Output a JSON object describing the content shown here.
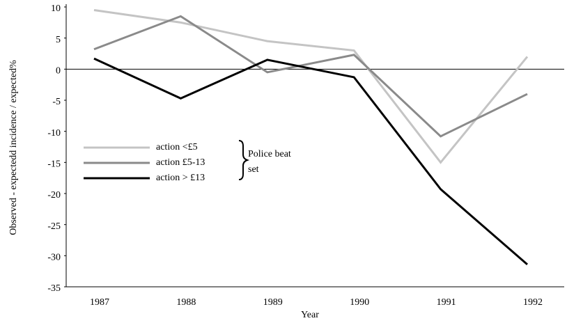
{
  "chart_data": {
    "type": "line",
    "x_label": "Year",
    "y_label": "Observed - expectedd incidence / expected%",
    "categories": [
      "1987",
      "1988",
      "1989",
      "1990",
      "1991",
      "1992"
    ],
    "series": [
      {
        "name": "action <£5",
        "color": "#c4c4c4",
        "values": [
          9.5,
          7.5,
          4.5,
          3,
          -15,
          2
        ]
      },
      {
        "name": "action £5-13",
        "color": "#8a8a8a",
        "values": [
          3.2,
          8.5,
          -0.5,
          2.3,
          -10.8,
          -4
        ]
      },
      {
        "name": "action > £13",
        "color": "#000000",
        "values": [
          1.7,
          -4.7,
          1.5,
          -1.3,
          -19.3,
          -31.4
        ]
      }
    ],
    "legend_annotation": [
      "Police beat",
      "set"
    ],
    "ylim": [
      -35,
      10
    ],
    "yticks": [
      10,
      5,
      0,
      -5,
      -10,
      -15,
      -20,
      -25,
      -30,
      -35
    ],
    "grid": false,
    "zero_line": true
  }
}
